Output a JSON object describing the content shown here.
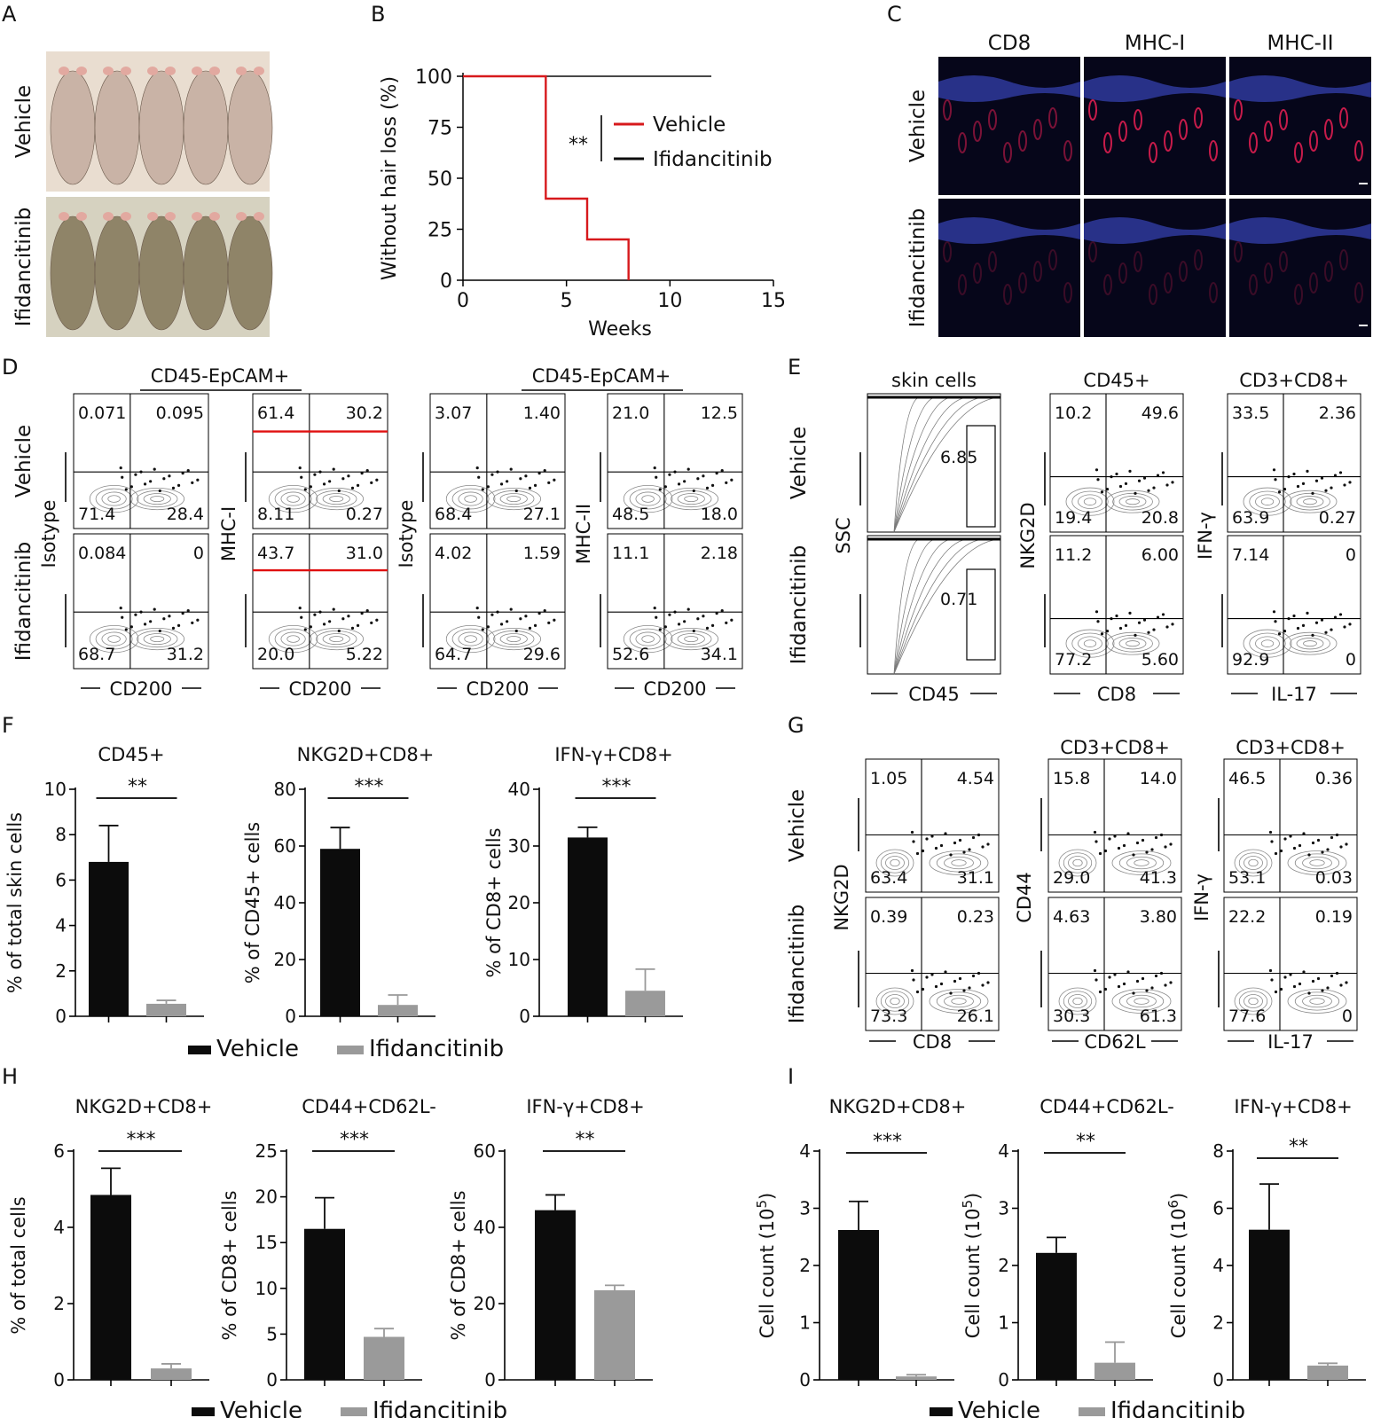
{
  "colors": {
    "vehicle_bar": "#0c0c0c",
    "ifidancitinib_bar": "#9a9a9a",
    "vehicle_line": "#d7191c",
    "ifidancitinib_line": "#0c0c0c",
    "gate_line": "#e01010"
  },
  "panels": [
    "A",
    "B",
    "C",
    "D",
    "E",
    "F",
    "G",
    "H",
    "I"
  ],
  "legend": {
    "vehicle": "Vehicle",
    "ifidancitinib": "Ifidancitinib"
  },
  "row_labels": {
    "vehicle": "Vehicle",
    "ifidancitinib": "Ifidancitinib"
  },
  "panel_c": {
    "columns": [
      "CD8",
      "MHC-I",
      "MHC-II"
    ]
  },
  "panel_d": {
    "headers": [
      "CD45-EpCAM+",
      "CD45-EpCAM+"
    ],
    "y_labels": [
      "Isotype",
      "MHC-I",
      "Isotype",
      "MHC-II"
    ],
    "x_label": "CD200",
    "quadrants": [
      [
        "0.071",
        "0.095",
        "71.4",
        "28.4"
      ],
      [
        "61.4",
        "30.2",
        "8.11",
        "0.27"
      ],
      [
        "3.07",
        "1.40",
        "68.4",
        "27.1"
      ],
      [
        "21.0",
        "12.5",
        "48.5",
        "18.0"
      ],
      [
        "0.084",
        "0",
        "68.7",
        "31.2"
      ],
      [
        "43.7",
        "31.0",
        "20.0",
        "5.22"
      ],
      [
        "4.02",
        "1.59",
        "64.7",
        "29.6"
      ],
      [
        "11.1",
        "2.18",
        "52.6",
        "34.1"
      ]
    ]
  },
  "panel_e": {
    "headers": [
      "skin cells",
      "CD45+",
      "CD3+CD8+"
    ],
    "y_labels": [
      "SSC",
      "NKG2D",
      "IFN-γ"
    ],
    "x_labels": [
      "CD45",
      "CD8",
      "IL-17"
    ],
    "gates": [
      "6.85",
      "0.71"
    ],
    "quadrants": [
      [
        "10.2",
        "49.6",
        "19.4",
        "20.8"
      ],
      [
        "33.5",
        "2.36",
        "63.9",
        "0.27"
      ],
      [
        "11.2",
        "6.00",
        "77.2",
        "5.60"
      ],
      [
        "7.14",
        "0",
        "92.9",
        "0"
      ]
    ]
  },
  "panel_g": {
    "headers": [
      "",
      "CD3+CD8+",
      "CD3+CD8+"
    ],
    "y_labels": [
      "NKG2D",
      "CD44",
      "IFN-γ"
    ],
    "x_labels": [
      "CD8",
      "CD62L",
      "IL-17"
    ],
    "quadrants": [
      [
        "1.05",
        "4.54",
        "63.4",
        "31.1"
      ],
      [
        "15.8",
        "14.0",
        "29.0",
        "41.3"
      ],
      [
        "46.5",
        "0.36",
        "53.1",
        "0.03"
      ],
      [
        "0.39",
        "0.23",
        "73.3",
        "26.1"
      ],
      [
        "4.63",
        "3.80",
        "30.3",
        "61.3"
      ],
      [
        "22.2",
        "0.19",
        "77.6",
        "0"
      ]
    ]
  },
  "chart_data": [
    {
      "panel": "B",
      "type": "line",
      "xlabel": "Weeks",
      "ylabel": "Without hair loss (%)",
      "xlim": [
        0,
        15
      ],
      "ylim": [
        0,
        100
      ],
      "xticks": [
        0,
        5,
        10,
        15
      ],
      "yticks": [
        0,
        25,
        50,
        75,
        100
      ],
      "significance": "**",
      "series": [
        {
          "name": "Vehicle",
          "step": true,
          "x": [
            0,
            4,
            4,
            6,
            6,
            8,
            8
          ],
          "y": [
            100,
            100,
            40,
            40,
            20,
            20,
            0
          ]
        },
        {
          "name": "Ifidancitinib",
          "step": true,
          "x": [
            0,
            12
          ],
          "y": [
            100,
            100
          ]
        }
      ]
    },
    {
      "panel": "F",
      "type": "bar",
      "title": "CD45+",
      "ylabel": "% of total skin cells",
      "ylim": [
        0,
        10
      ],
      "yticks": [
        0,
        2,
        4,
        6,
        8,
        10
      ],
      "categories": [
        "Vehicle",
        "Ifidancitinib"
      ],
      "values": [
        6.8,
        0.55
      ],
      "errors": [
        1.6,
        0.15
      ],
      "significance": "**"
    },
    {
      "panel": "F",
      "type": "bar",
      "title": "NKG2D+CD8+",
      "ylabel": "% of CD45+ cells",
      "ylim": [
        0,
        80
      ],
      "yticks": [
        0,
        20,
        40,
        60,
        80
      ],
      "categories": [
        "Vehicle",
        "Ifidancitinib"
      ],
      "values": [
        59,
        4
      ],
      "errors": [
        7.5,
        3.5
      ],
      "significance": "***"
    },
    {
      "panel": "F",
      "type": "bar",
      "title": "IFN-γ+CD8+",
      "ylabel": "% of CD8+ cells",
      "ylim": [
        0,
        40
      ],
      "yticks": [
        0,
        10,
        20,
        30,
        40
      ],
      "categories": [
        "Vehicle",
        "Ifidancitinib"
      ],
      "values": [
        31.5,
        4.5
      ],
      "errors": [
        1.8,
        3.8
      ],
      "significance": "***"
    },
    {
      "panel": "H",
      "type": "bar",
      "title": "NKG2D+CD8+",
      "ylabel": "% of total cells",
      "ylim": [
        0,
        6
      ],
      "yticks": [
        0,
        2,
        4,
        6
      ],
      "categories": [
        "Vehicle",
        "Ifidancitinib"
      ],
      "values": [
        4.85,
        0.3
      ],
      "errors": [
        0.7,
        0.12
      ],
      "significance": "***"
    },
    {
      "panel": "H",
      "type": "bar",
      "title": "CD44+CD62L-",
      "ylabel": "% of CD8+ cells",
      "ylim": [
        0,
        25
      ],
      "yticks": [
        0,
        5,
        10,
        15,
        20,
        25
      ],
      "categories": [
        "Vehicle",
        "Ifidancitinib"
      ],
      "values": [
        16.5,
        4.7
      ],
      "errors": [
        3.4,
        0.9
      ],
      "significance": "***"
    },
    {
      "panel": "H",
      "type": "bar",
      "title": "IFN-γ+CD8+",
      "ylabel": "% of CD8+ cells",
      "ylim": [
        0,
        60
      ],
      "yticks": [
        0,
        20,
        40,
        60
      ],
      "categories": [
        "Vehicle",
        "Ifidancitinib"
      ],
      "values": [
        44.5,
        23.5
      ],
      "errors": [
        4,
        1.3
      ],
      "significance": "**"
    },
    {
      "panel": "I",
      "type": "bar",
      "title": "NKG2D+CD8+",
      "ylabel": "Cell count (10",
      "ylabel_exp": "5",
      "ylim": [
        0,
        4
      ],
      "yticks": [
        0,
        1,
        2,
        3,
        4
      ],
      "categories": [
        "Vehicle",
        "Ifidancitinib"
      ],
      "values": [
        2.62,
        0.06
      ],
      "errors": [
        0.5,
        0.03
      ],
      "significance": "***"
    },
    {
      "panel": "I",
      "type": "bar",
      "title": "CD44+CD62L-",
      "ylabel": "Cell count (10",
      "ylabel_exp": "5",
      "ylim": [
        0,
        4
      ],
      "yticks": [
        0,
        1,
        2,
        3,
        4
      ],
      "categories": [
        "Vehicle",
        "Ifidancitinib"
      ],
      "values": [
        2.22,
        0.3
      ],
      "errors": [
        0.27,
        0.36
      ],
      "significance": "**"
    },
    {
      "panel": "I",
      "type": "bar",
      "title": "IFN-γ+CD8+",
      "ylabel": "Cell count (10",
      "ylabel_exp": "6",
      "ylim": [
        0,
        8
      ],
      "yticks": [
        0,
        2,
        4,
        6,
        8
      ],
      "categories": [
        "Vehicle",
        "Ifidancitinib"
      ],
      "values": [
        5.25,
        0.5
      ],
      "errors": [
        1.6,
        0.08
      ],
      "significance": "**"
    }
  ]
}
